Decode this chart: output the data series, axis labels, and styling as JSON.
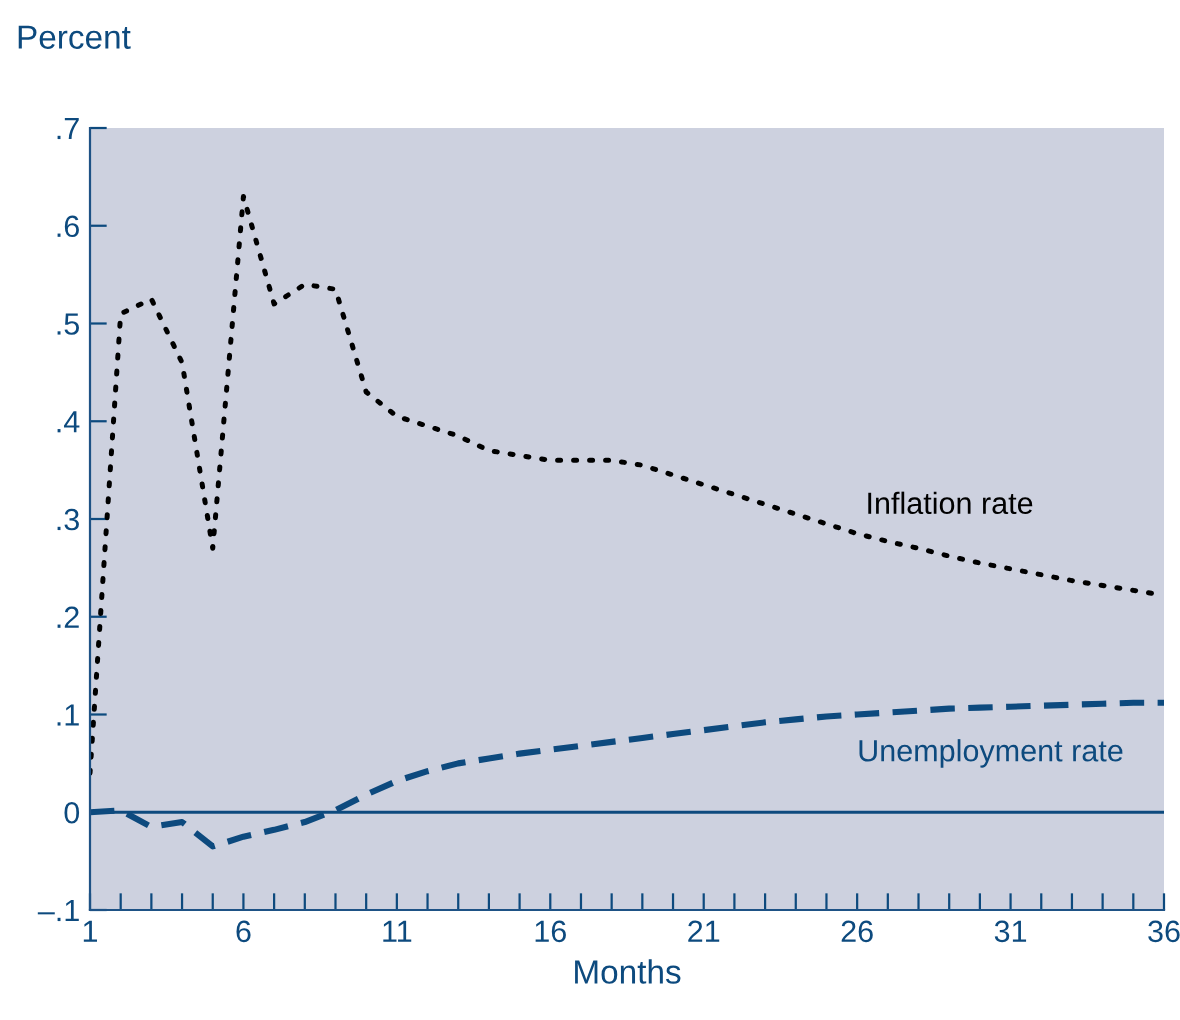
{
  "chart_data": {
    "type": "line",
    "ylabel": "Percent",
    "xlabel": "Months",
    "x": [
      1,
      2,
      3,
      4,
      5,
      6,
      7,
      8,
      9,
      10,
      11,
      12,
      13,
      14,
      15,
      16,
      17,
      18,
      19,
      20,
      21,
      22,
      23,
      24,
      25,
      26,
      27,
      28,
      29,
      30,
      31,
      32,
      33,
      34,
      35,
      36
    ],
    "series": [
      {
        "name": "Inflation rate",
        "color": "#000000",
        "line_style": "dotted",
        "values": [
          0.04,
          0.51,
          0.525,
          0.46,
          0.27,
          0.63,
          0.52,
          0.54,
          0.535,
          0.43,
          0.405,
          0.395,
          0.385,
          0.37,
          0.365,
          0.36,
          0.36,
          0.36,
          0.355,
          0.345,
          0.335,
          0.325,
          0.315,
          0.305,
          0.295,
          0.285,
          0.277,
          0.27,
          0.262,
          0.255,
          0.249,
          0.243,
          0.237,
          0.232,
          0.227,
          0.222
        ]
      },
      {
        "name": "Unemployment rate",
        "color": "#0d4a7e",
        "line_style": "dashed",
        "values": [
          0,
          0.002,
          -0.015,
          -0.01,
          -0.035,
          -0.025,
          -0.018,
          -0.01,
          0.002,
          0.018,
          0.032,
          0.042,
          0.05,
          0.055,
          0.06,
          0.064,
          0.068,
          0.072,
          0.076,
          0.08,
          0.084,
          0.088,
          0.092,
          0.095,
          0.098,
          0.1,
          0.102,
          0.104,
          0.106,
          0.107,
          0.108,
          0.109,
          0.11,
          0.111,
          0.112,
          0.112
        ]
      }
    ],
    "xlim": [
      1,
      36
    ],
    "xticks": [
      1,
      {
        "value": 2,
        "label": null
      },
      {
        "value": 3,
        "label": null
      },
      {
        "value": 4,
        "label": null
      },
      {
        "value": 5,
        "label": null
      },
      6,
      {
        "value": 7,
        "label": null
      },
      {
        "value": 8,
        "label": null
      },
      {
        "value": 9,
        "label": null
      },
      {
        "value": 10,
        "label": null
      },
      11,
      {
        "value": 12,
        "label": null
      },
      {
        "value": 13,
        "label": null
      },
      {
        "value": 14,
        "label": null
      },
      {
        "value": 15,
        "label": null
      },
      16,
      {
        "value": 17,
        "label": null
      },
      {
        "value": 18,
        "label": null
      },
      {
        "value": 19,
        "label": null
      },
      {
        "value": 20,
        "label": null
      },
      21,
      {
        "value": 22,
        "label": null
      },
      {
        "value": 23,
        "label": null
      },
      {
        "value": 24,
        "label": null
      },
      {
        "value": 25,
        "label": null
      },
      26,
      {
        "value": 27,
        "label": null
      },
      {
        "value": 28,
        "label": null
      },
      {
        "value": 29,
        "label": null
      },
      {
        "value": 30,
        "label": null
      },
      31,
      {
        "value": 32,
        "label": null
      },
      {
        "value": 33,
        "label": null
      },
      {
        "value": 34,
        "label": null
      },
      {
        "value": 35,
        "label": null
      },
      36
    ],
    "ylim": [
      -0.1,
      0.7
    ],
    "yticks": [
      {
        "value": -0.1,
        "label": "–.1"
      },
      0,
      {
        "value": 0.1,
        "label": ".1"
      },
      {
        "value": 0.2,
        "label": ".2"
      },
      {
        "value": 0.3,
        "label": ".3"
      },
      {
        "value": 0.4,
        "label": ".4"
      },
      {
        "value": 0.5,
        "label": ".5"
      },
      {
        "value": 0.6,
        "label": ".6"
      },
      {
        "value": 0.7,
        "label": ".7"
      }
    ],
    "ref_lines": [
      {
        "axis": "y",
        "value": 0,
        "color": "#0d4a7e",
        "line_style": "solid"
      }
    ],
    "grid": false,
    "legend": false
  }
}
